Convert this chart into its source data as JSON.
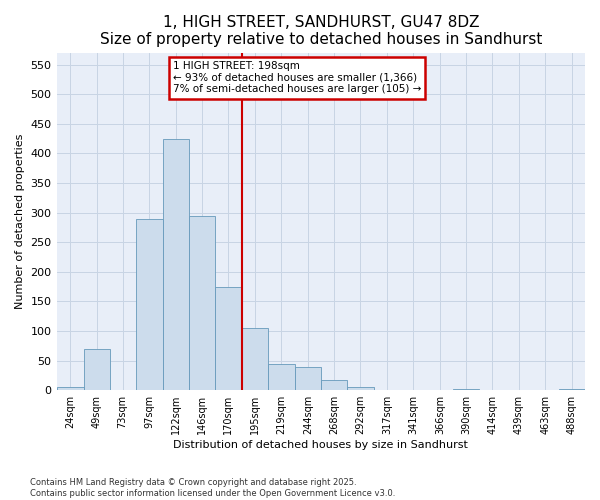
{
  "title": "1, HIGH STREET, SANDHURST, GU47 8DZ",
  "subtitle": "Size of property relative to detached houses in Sandhurst",
  "xlabel": "Distribution of detached houses by size in Sandhurst",
  "ylabel": "Number of detached properties",
  "footnote1": "Contains HM Land Registry data © Crown copyright and database right 2025.",
  "footnote2": "Contains public sector information licensed under the Open Government Licence v3.0.",
  "bin_edges": [
    24,
    49,
    73,
    97,
    122,
    146,
    170,
    195,
    219,
    244,
    268,
    292,
    317,
    341,
    366,
    390,
    414,
    439,
    463,
    488,
    512
  ],
  "bar_heights": [
    5,
    70,
    0,
    290,
    425,
    295,
    175,
    105,
    45,
    40,
    17,
    6,
    0,
    0,
    0,
    2,
    0,
    0,
    0,
    2
  ],
  "bar_color": "#ccdcec",
  "bar_edge_color": "#6699bb",
  "grid_color": "#c8d4e4",
  "background_color": "#e8eef8",
  "vline_x": 195,
  "vline_color": "#cc0000",
  "annotation_text": "1 HIGH STREET: 198sqm\n← 93% of detached houses are smaller (1,366)\n7% of semi-detached houses are larger (105) →",
  "annotation_box_color": "#cc0000",
  "ylim": [
    0,
    570
  ],
  "yticks": [
    0,
    50,
    100,
    150,
    200,
    250,
    300,
    350,
    400,
    450,
    500,
    550
  ],
  "title_fontsize": 11,
  "subtitle_fontsize": 9,
  "axis_fontsize": 8,
  "tick_fontsize": 7,
  "annotation_fontsize": 7.5,
  "footnote_fontsize": 6
}
